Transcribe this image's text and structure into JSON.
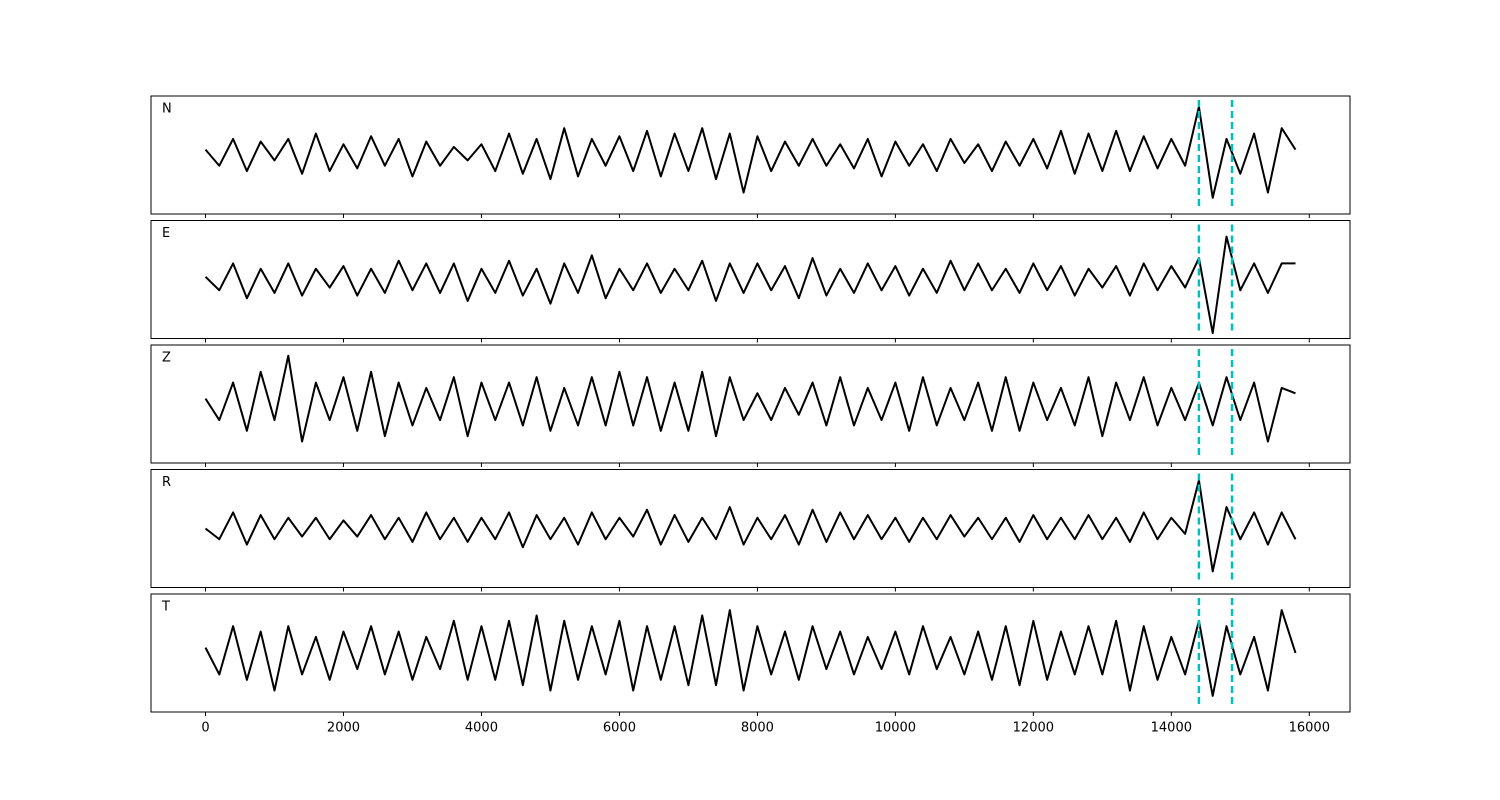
{
  "chart_data": {
    "type": "line",
    "stacked_panels": true,
    "x": [
      0,
      200,
      400,
      600,
      800,
      1000,
      1200,
      1400,
      1600,
      1800,
      2000,
      2200,
      2400,
      2600,
      2800,
      3000,
      3200,
      3400,
      3600,
      3800,
      4000,
      4200,
      4400,
      4600,
      4800,
      5000,
      5200,
      5400,
      5600,
      5800,
      6000,
      6200,
      6400,
      6600,
      6800,
      7000,
      7200,
      7400,
      7600,
      7800,
      8000,
      8200,
      8400,
      8600,
      8800,
      9000,
      9200,
      9400,
      9600,
      9800,
      10000,
      10200,
      10400,
      10600,
      10800,
      11000,
      11200,
      11400,
      11600,
      11800,
      12000,
      12200,
      12400,
      12600,
      12800,
      13000,
      13200,
      13400,
      13600,
      13800,
      14000,
      14200,
      14400,
      14600,
      14800,
      15000,
      15200,
      15400,
      15600,
      15800
    ],
    "series": [
      {
        "name": "N",
        "color": "#000000",
        "values": [
          0.1,
          -0.2,
          0.3,
          -0.3,
          0.25,
          -0.1,
          0.3,
          -0.35,
          0.4,
          -0.3,
          0.2,
          -0.25,
          0.35,
          -0.2,
          0.3,
          -0.4,
          0.25,
          -0.2,
          0.15,
          -0.1,
          0.2,
          -0.3,
          0.4,
          -0.35,
          0.3,
          -0.45,
          0.5,
          -0.4,
          0.3,
          -0.2,
          0.35,
          -0.3,
          0.45,
          -0.4,
          0.4,
          -0.3,
          0.5,
          -0.45,
          0.4,
          -0.7,
          0.35,
          -0.3,
          0.25,
          -0.2,
          0.3,
          -0.2,
          0.2,
          -0.25,
          0.3,
          -0.4,
          0.25,
          -0.2,
          0.2,
          -0.3,
          0.3,
          -0.15,
          0.2,
          -0.3,
          0.25,
          -0.2,
          0.3,
          -0.25,
          0.45,
          -0.35,
          0.4,
          -0.3,
          0.45,
          -0.3,
          0.35,
          -0.25,
          0.3,
          -0.2,
          0.9,
          -0.8,
          0.3,
          -0.35,
          0.4,
          -0.7,
          0.5,
          0.1
        ]
      },
      {
        "name": "E",
        "color": "#000000",
        "values": [
          0.05,
          -0.2,
          0.3,
          -0.35,
          0.2,
          -0.25,
          0.3,
          -0.3,
          0.2,
          -0.15,
          0.25,
          -0.3,
          0.2,
          -0.25,
          0.35,
          -0.2,
          0.3,
          -0.25,
          0.3,
          -0.4,
          0.2,
          -0.25,
          0.35,
          -0.3,
          0.2,
          -0.45,
          0.3,
          -0.25,
          0.45,
          -0.35,
          0.2,
          -0.2,
          0.3,
          -0.25,
          0.2,
          -0.2,
          0.35,
          -0.4,
          0.3,
          -0.25,
          0.3,
          -0.2,
          0.25,
          -0.35,
          0.4,
          -0.3,
          0.2,
          -0.25,
          0.3,
          -0.2,
          0.25,
          -0.3,
          0.2,
          -0.25,
          0.35,
          -0.2,
          0.3,
          -0.2,
          0.2,
          -0.25,
          0.3,
          -0.2,
          0.25,
          -0.3,
          0.2,
          -0.15,
          0.25,
          -0.3,
          0.3,
          -0.2,
          0.25,
          -0.15,
          0.4,
          -1.0,
          0.8,
          -0.2,
          0.3,
          -0.25,
          0.3,
          0.3
        ]
      },
      {
        "name": "Z",
        "color": "#000000",
        "values": [
          0.1,
          -0.3,
          0.4,
          -0.5,
          0.6,
          -0.3,
          0.9,
          -0.7,
          0.4,
          -0.3,
          0.5,
          -0.5,
          0.6,
          -0.6,
          0.4,
          -0.4,
          0.3,
          -0.3,
          0.5,
          -0.6,
          0.4,
          -0.3,
          0.4,
          -0.4,
          0.5,
          -0.5,
          0.3,
          -0.4,
          0.5,
          -0.4,
          0.6,
          -0.4,
          0.5,
          -0.5,
          0.4,
          -0.5,
          0.6,
          -0.6,
          0.5,
          -0.3,
          0.2,
          -0.3,
          0.3,
          -0.2,
          0.4,
          -0.4,
          0.5,
          -0.4,
          0.3,
          -0.3,
          0.4,
          -0.5,
          0.5,
          -0.4,
          0.3,
          -0.3,
          0.4,
          -0.5,
          0.5,
          -0.5,
          0.4,
          -0.3,
          0.3,
          -0.4,
          0.5,
          -0.6,
          0.4,
          -0.3,
          0.5,
          -0.4,
          0.3,
          -0.3,
          0.4,
          -0.4,
          0.5,
          -0.3,
          0.4,
          -0.7,
          0.3,
          0.2
        ]
      },
      {
        "name": "R",
        "color": "#000000",
        "values": [
          0.0,
          -0.2,
          0.3,
          -0.3,
          0.25,
          -0.2,
          0.2,
          -0.15,
          0.2,
          -0.2,
          0.15,
          -0.15,
          0.25,
          -0.2,
          0.2,
          -0.25,
          0.3,
          -0.2,
          0.2,
          -0.25,
          0.2,
          -0.2,
          0.3,
          -0.35,
          0.25,
          -0.2,
          0.2,
          -0.3,
          0.3,
          -0.2,
          0.2,
          -0.15,
          0.35,
          -0.3,
          0.25,
          -0.25,
          0.2,
          -0.2,
          0.4,
          -0.3,
          0.2,
          -0.2,
          0.25,
          -0.3,
          0.35,
          -0.25,
          0.3,
          -0.2,
          0.25,
          -0.2,
          0.2,
          -0.25,
          0.2,
          -0.2,
          0.25,
          -0.15,
          0.2,
          -0.2,
          0.2,
          -0.25,
          0.25,
          -0.2,
          0.2,
          -0.2,
          0.25,
          -0.2,
          0.2,
          -0.25,
          0.3,
          -0.2,
          0.2,
          -0.1,
          0.9,
          -0.8,
          0.4,
          -0.2,
          0.3,
          -0.3,
          0.3,
          -0.2
        ]
      },
      {
        "name": "T",
        "color": "#000000",
        "values": [
          0.1,
          -0.4,
          0.5,
          -0.5,
          0.4,
          -0.7,
          0.5,
          -0.4,
          0.3,
          -0.5,
          0.4,
          -0.3,
          0.5,
          -0.4,
          0.4,
          -0.5,
          0.3,
          -0.3,
          0.6,
          -0.5,
          0.5,
          -0.5,
          0.6,
          -0.6,
          0.7,
          -0.7,
          0.6,
          -0.5,
          0.5,
          -0.4,
          0.6,
          -0.7,
          0.5,
          -0.5,
          0.5,
          -0.6,
          0.7,
          -0.6,
          0.8,
          -0.7,
          0.5,
          -0.4,
          0.4,
          -0.5,
          0.5,
          -0.3,
          0.4,
          -0.4,
          0.3,
          -0.3,
          0.4,
          -0.4,
          0.5,
          -0.3,
          0.3,
          -0.4,
          0.4,
          -0.5,
          0.5,
          -0.6,
          0.6,
          -0.5,
          0.4,
          -0.4,
          0.5,
          -0.4,
          0.6,
          -0.7,
          0.5,
          -0.5,
          0.3,
          -0.4,
          0.6,
          -0.8,
          0.5,
          -0.4,
          0.3,
          -0.7,
          0.8,
          0.0
        ]
      }
    ],
    "xlim": [
      -790,
      16590
    ],
    "xticks": [
      0,
      2000,
      4000,
      6000,
      8000,
      10000,
      12000,
      14000,
      16000
    ],
    "ylim": [
      -1.1,
      1.1
    ],
    "vlines": [
      14400,
      14880
    ],
    "vline_color": "#00bfbf"
  }
}
